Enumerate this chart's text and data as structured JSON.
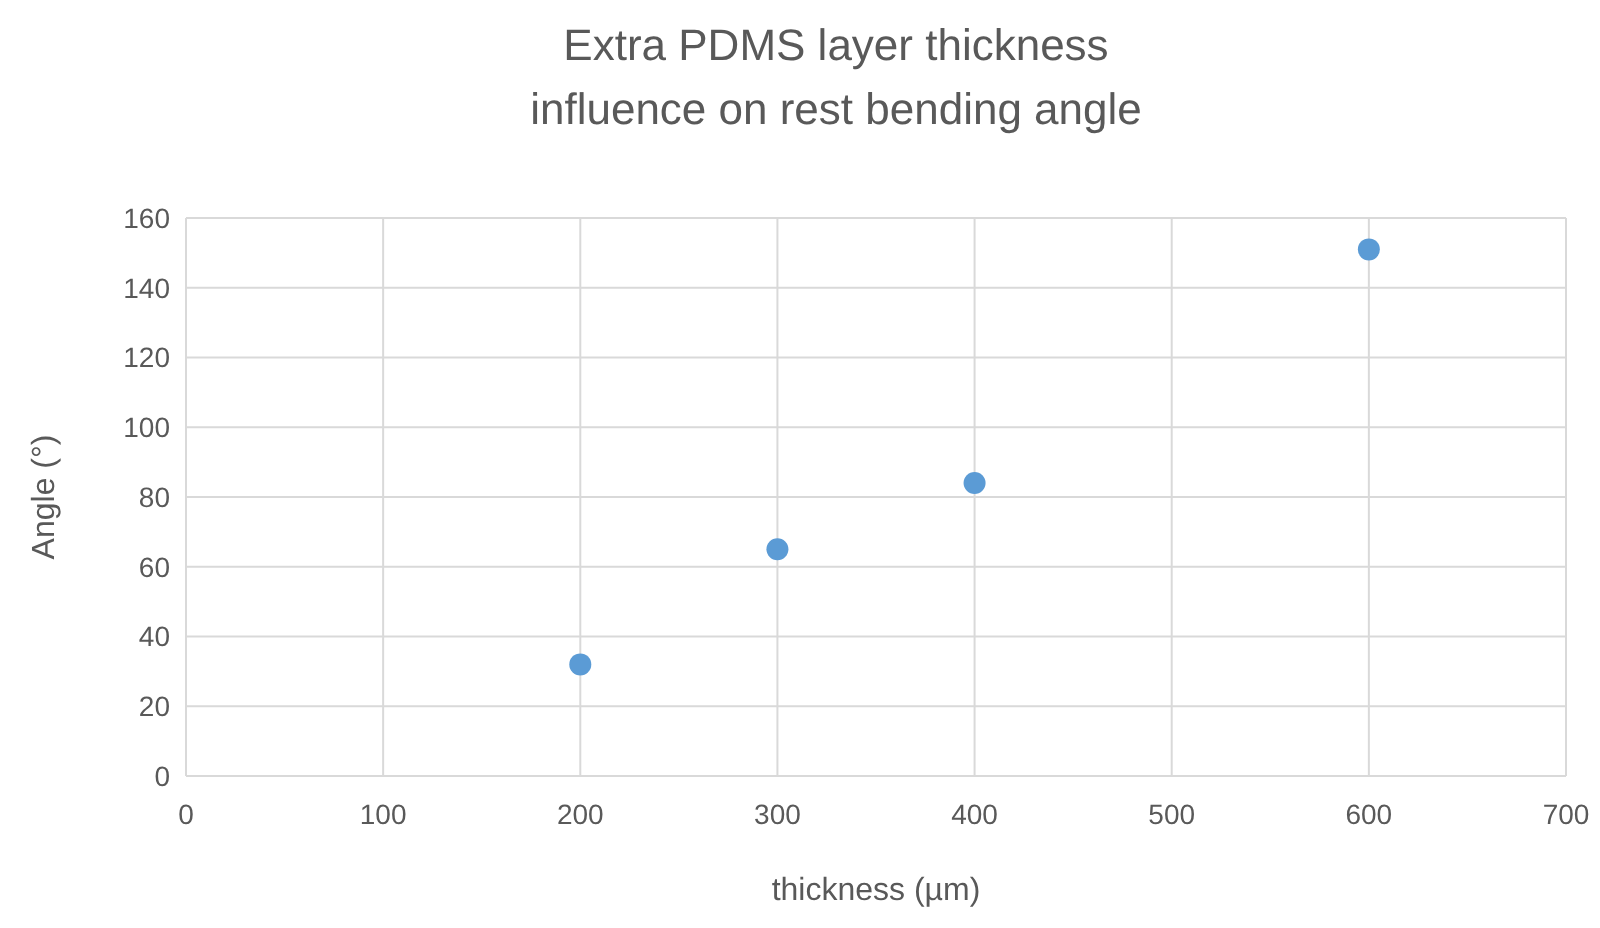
{
  "chart_data": {
    "type": "scatter",
    "title": "Extra PDMS layer thickness influence on rest bending angle",
    "xlabel": "thickness (µm)",
    "ylabel": "Angle (°)",
    "x": [
      200,
      300,
      400,
      600
    ],
    "series": [
      {
        "color": "#5b9bd5",
        "values": [
          32,
          65,
          84,
          151
        ]
      }
    ],
    "xlim": [
      0,
      700
    ],
    "xticks": [
      0,
      100,
      200,
      300,
      400,
      500,
      600,
      700
    ],
    "ylim": [
      0,
      160
    ],
    "yticks": [
      0,
      20,
      40,
      60,
      80,
      100,
      120,
      140,
      160
    ],
    "grid": true,
    "marker": "circle"
  }
}
